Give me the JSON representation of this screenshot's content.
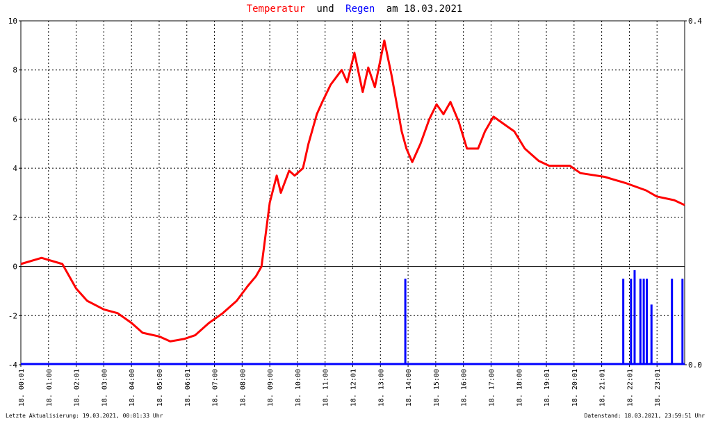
{
  "chart_data": {
    "type": "line",
    "title": [
      "Temperatur",
      "und",
      "Regen",
      "am 18.03.2021"
    ],
    "xlim": [
      0,
      24
    ],
    "xticks": [
      {
        "value": 0,
        "label": "18. 00:01"
      },
      {
        "value": 1,
        "label": "18. 01:00"
      },
      {
        "value": 2,
        "label": "18. 02:01"
      },
      {
        "value": 3,
        "label": "18. 03:00"
      },
      {
        "value": 4,
        "label": "18. 04:00"
      },
      {
        "value": 5,
        "label": "18. 05:00"
      },
      {
        "value": 6,
        "label": "18. 06:01"
      },
      {
        "value": 7,
        "label": "18. 07:00"
      },
      {
        "value": 8,
        "label": "18. 08:00"
      },
      {
        "value": 9,
        "label": "18. 09:00"
      },
      {
        "value": 10,
        "label": "18. 10:00"
      },
      {
        "value": 11,
        "label": "18. 11:00"
      },
      {
        "value": 12,
        "label": "18. 12:01"
      },
      {
        "value": 13,
        "label": "18. 13:00"
      },
      {
        "value": 14,
        "label": "18. 14:00"
      },
      {
        "value": 15,
        "label": "18. 15:00"
      },
      {
        "value": 16,
        "label": "18. 16:00"
      },
      {
        "value": 17,
        "label": "18. 17:00"
      },
      {
        "value": 18,
        "label": "18. 18:00"
      },
      {
        "value": 19,
        "label": "18. 19:01"
      },
      {
        "value": 20,
        "label": "18. 20:01"
      },
      {
        "value": 21,
        "label": "18. 21:01"
      },
      {
        "value": 22,
        "label": "18. 22:01"
      },
      {
        "value": 23,
        "label": "18. 23:01"
      }
    ],
    "ylim": [
      -4,
      10
    ],
    "yticks": [
      -4,
      -2,
      0,
      2,
      4,
      6,
      8,
      10
    ],
    "y2lim": [
      0,
      0.4
    ],
    "y2ticks": [
      {
        "value": 0,
        "label": "0.0"
      },
      0.4
    ],
    "grid": true,
    "series": [
      {
        "name": "Temperatur",
        "color": "#ff0000",
        "x": [
          0,
          0.75,
          1.5,
          2,
          2.4,
          3,
          3.5,
          4,
          4.4,
          5,
          5.4,
          5.9,
          6.3,
          6.8,
          7.3,
          7.8,
          8.2,
          8.5,
          8.7,
          9,
          9.25,
          9.4,
          9.7,
          9.9,
          10.2,
          10.4,
          10.7,
          10.9,
          11.2,
          11.6,
          11.8,
          12.06,
          12.36,
          12.56,
          12.8,
          13.14,
          13.4,
          13.77,
          13.94,
          14.15,
          14.45,
          14.77,
          15.03,
          15.28,
          15.53,
          15.83,
          16.13,
          16.53,
          16.78,
          17.09,
          17.46,
          17.84,
          18.22,
          18.72,
          19.1,
          19.85,
          20.23,
          21.1,
          21.86,
          22.6,
          22.99,
          23.62,
          24
        ],
        "values": [
          0.1,
          0.35,
          0.1,
          -0.9,
          -1.4,
          -1.75,
          -1.9,
          -2.3,
          -2.7,
          -2.85,
          -3.05,
          -2.95,
          -2.8,
          -2.3,
          -1.9,
          -1.4,
          -0.8,
          -0.4,
          0,
          2.6,
          3.7,
          3.0,
          3.9,
          3.7,
          4.0,
          5.0,
          6.2,
          6.7,
          7.4,
          8.0,
          7.5,
          8.7,
          7.1,
          8.1,
          7.3,
          9.2,
          7.8,
          5.5,
          4.8,
          4.25,
          5.0,
          6.0,
          6.6,
          6.2,
          6.7,
          5.9,
          4.8,
          4.8,
          5.5,
          6.1,
          5.8,
          5.5,
          4.8,
          4.3,
          4.1,
          4.1,
          3.8,
          3.65,
          3.4,
          3.1,
          2.85,
          2.7,
          2.5
        ]
      },
      {
        "name": "Regen",
        "color": "#0000ff",
        "type": "bar",
        "axis": "y2",
        "x": [
          13.9,
          21.78,
          22.06,
          22.19,
          22.4,
          22.52,
          22.63,
          22.8,
          23.54,
          23.92
        ],
        "values": [
          0.1,
          0.1,
          0.1,
          0.11,
          0.1,
          0.1,
          0.1,
          0.07,
          0.1,
          0.1
        ]
      }
    ],
    "footer_left": "Letzte Aktualisierung: 19.03.2021, 00:01:33 Uhr",
    "footer_right": "Datenstand: 18.03.2021, 23:59:51 Uhr"
  }
}
